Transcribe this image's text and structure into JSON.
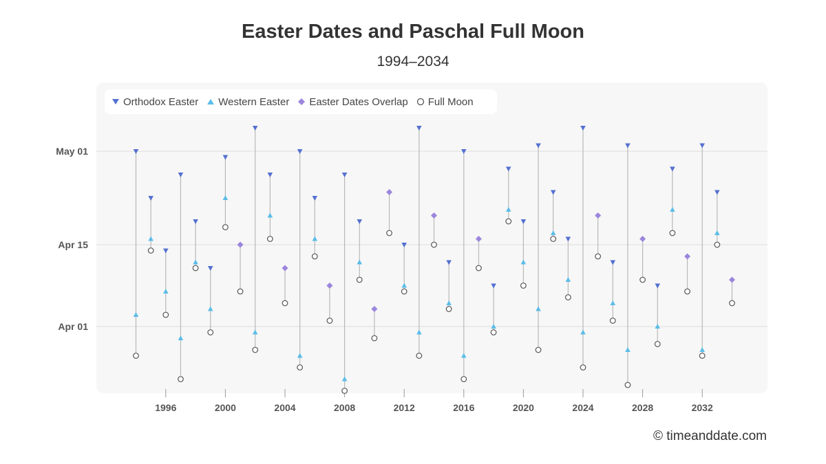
{
  "page": {
    "title": "Easter Dates and Paschal Full Moon",
    "subtitle": "1994–2034",
    "credit": "© timeanddate.com"
  },
  "colors": {
    "orthodox": "#5470d0",
    "western": "#5bbde8",
    "overlap": "#9b86dc",
    "moon_stroke": "#555555",
    "stem": "#b8b8b8",
    "grid": "#dddddd"
  },
  "legend": [
    {
      "key": "orthodox",
      "label": "Orthodox Easter",
      "icon": "down-triangle"
    },
    {
      "key": "western",
      "label": "Western Easter",
      "icon": "up-triangle"
    },
    {
      "key": "overlap",
      "label": "Easter Dates Overlap",
      "icon": "diamond"
    },
    {
      "key": "moon",
      "label": "Full Moon",
      "icon": "open-circle"
    }
  ],
  "chart_data": {
    "type": "scatter",
    "title": "Easter Dates and Paschal Full Moon",
    "subtitle": "1994–2034",
    "xlabel": "",
    "ylabel": "",
    "x_ticks": [
      1996,
      2000,
      2004,
      2008,
      2012,
      2016,
      2020,
      2024,
      2028,
      2032
    ],
    "y_ticks": [
      {
        "label": "Apr 01",
        "date": "04-01"
      },
      {
        "label": "Apr 15",
        "date": "04-15"
      },
      {
        "label": "May 01",
        "date": "05-01"
      }
    ],
    "grid": true,
    "legend_position": "top-left",
    "series": [
      {
        "year": 1994,
        "full_moon": "03-27",
        "western": "04-03",
        "orthodox": "05-01"
      },
      {
        "year": 1995,
        "full_moon": "04-14",
        "western": "04-16",
        "orthodox": "04-23"
      },
      {
        "year": 1996,
        "full_moon": "04-03",
        "western": "04-07",
        "orthodox": "04-14"
      },
      {
        "year": 1997,
        "full_moon": "03-23",
        "western": "03-30",
        "orthodox": "04-27"
      },
      {
        "year": 1998,
        "full_moon": "04-11",
        "western": "04-12",
        "orthodox": "04-19"
      },
      {
        "year": 1999,
        "full_moon": "03-31",
        "western": "04-04",
        "orthodox": "04-11"
      },
      {
        "year": 2000,
        "full_moon": "04-18",
        "western": "04-23",
        "orthodox": "04-30"
      },
      {
        "year": 2001,
        "full_moon": "04-07",
        "overlap": "04-15"
      },
      {
        "year": 2002,
        "full_moon": "03-28",
        "western": "03-31",
        "orthodox": "05-05"
      },
      {
        "year": 2003,
        "full_moon": "04-16",
        "western": "04-20",
        "orthodox": "04-27"
      },
      {
        "year": 2004,
        "full_moon": "04-05",
        "overlap": "04-11"
      },
      {
        "year": 2005,
        "full_moon": "03-25",
        "western": "03-27",
        "orthodox": "05-01"
      },
      {
        "year": 2006,
        "full_moon": "04-13",
        "western": "04-16",
        "orthodox": "04-23"
      },
      {
        "year": 2007,
        "full_moon": "04-02",
        "overlap": "04-08"
      },
      {
        "year": 2008,
        "full_moon": "03-21",
        "western": "03-23",
        "orthodox": "04-27"
      },
      {
        "year": 2009,
        "full_moon": "04-09",
        "western": "04-12",
        "orthodox": "04-19"
      },
      {
        "year": 2010,
        "full_moon": "03-30",
        "overlap": "04-04"
      },
      {
        "year": 2011,
        "full_moon": "04-17",
        "overlap": "04-24"
      },
      {
        "year": 2012,
        "full_moon": "04-07",
        "western": "04-08",
        "orthodox": "04-15"
      },
      {
        "year": 2013,
        "full_moon": "03-27",
        "western": "03-31",
        "orthodox": "05-05"
      },
      {
        "year": 2014,
        "full_moon": "04-15",
        "overlap": "04-20"
      },
      {
        "year": 2015,
        "full_moon": "04-04",
        "western": "04-05",
        "orthodox": "04-12"
      },
      {
        "year": 2016,
        "full_moon": "03-23",
        "western": "03-27",
        "orthodox": "05-01"
      },
      {
        "year": 2017,
        "full_moon": "04-11",
        "overlap": "04-16"
      },
      {
        "year": 2018,
        "full_moon": "03-31",
        "western": "04-01",
        "orthodox": "04-08"
      },
      {
        "year": 2019,
        "full_moon": "04-19",
        "western": "04-21",
        "orthodox": "04-28"
      },
      {
        "year": 2020,
        "full_moon": "04-08",
        "western": "04-12",
        "orthodox": "04-19"
      },
      {
        "year": 2021,
        "full_moon": "03-28",
        "western": "04-04",
        "orthodox": "05-02"
      },
      {
        "year": 2022,
        "full_moon": "04-16",
        "western": "04-17",
        "orthodox": "04-24"
      },
      {
        "year": 2023,
        "full_moon": "04-06",
        "western": "04-09",
        "orthodox": "04-16"
      },
      {
        "year": 2024,
        "full_moon": "03-25",
        "western": "03-31",
        "orthodox": "05-05"
      },
      {
        "year": 2025,
        "full_moon": "04-13",
        "overlap": "04-20"
      },
      {
        "year": 2026,
        "full_moon": "04-02",
        "western": "04-05",
        "orthodox": "04-12"
      },
      {
        "year": 2027,
        "full_moon": "03-22",
        "western": "03-28",
        "orthodox": "05-02"
      },
      {
        "year": 2028,
        "full_moon": "04-09",
        "overlap": "04-16"
      },
      {
        "year": 2029,
        "full_moon": "03-29",
        "western": "04-01",
        "orthodox": "04-08"
      },
      {
        "year": 2030,
        "full_moon": "04-17",
        "western": "04-21",
        "orthodox": "04-28"
      },
      {
        "year": 2031,
        "full_moon": "04-07",
        "overlap": "04-13"
      },
      {
        "year": 2032,
        "full_moon": "03-27",
        "western": "03-28",
        "orthodox": "05-02"
      },
      {
        "year": 2033,
        "full_moon": "04-15",
        "western": "04-17",
        "orthodox": "04-24"
      },
      {
        "year": 2034,
        "full_moon": "04-05",
        "overlap": "04-09"
      }
    ]
  }
}
